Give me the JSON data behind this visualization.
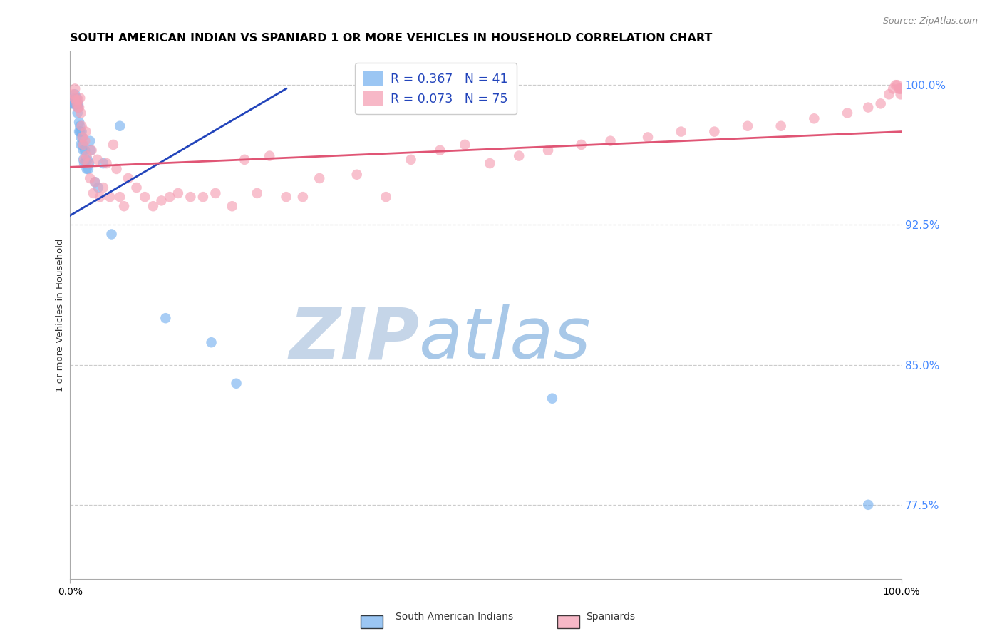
{
  "title": "SOUTH AMERICAN INDIAN VS SPANIARD 1 OR MORE VEHICLES IN HOUSEHOLD CORRELATION CHART",
  "source": "Source: ZipAtlas.com",
  "ylabel": "1 or more Vehicles in Household",
  "xlim": [
    0.0,
    1.0
  ],
  "ylim": [
    0.735,
    1.018
  ],
  "yticks": [
    0.775,
    0.85,
    0.925,
    1.0
  ],
  "ytick_labels": [
    "77.5%",
    "85.0%",
    "92.5%",
    "100.0%"
  ],
  "legend_blue_r": "R = 0.367",
  "legend_blue_n": "N = 41",
  "legend_pink_r": "R = 0.073",
  "legend_pink_n": "N = 75",
  "legend_blue_label": "South American Indians",
  "legend_pink_label": "Spaniards",
  "watermark_zip": "ZIP",
  "watermark_atlas": "atlas",
  "blue_scatter_x": [
    0.003,
    0.004,
    0.005,
    0.006,
    0.006,
    0.007,
    0.008,
    0.008,
    0.009,
    0.01,
    0.01,
    0.011,
    0.011,
    0.012,
    0.012,
    0.013,
    0.013,
    0.014,
    0.015,
    0.015,
    0.016,
    0.016,
    0.017,
    0.018,
    0.019,
    0.02,
    0.021,
    0.022,
    0.023,
    0.024,
    0.025,
    0.03,
    0.034,
    0.04,
    0.05,
    0.06,
    0.115,
    0.17,
    0.2,
    0.58,
    0.96
  ],
  "blue_scatter_y": [
    0.99,
    0.992,
    0.99,
    0.995,
    0.993,
    0.99,
    0.993,
    0.99,
    0.985,
    0.99,
    0.988,
    0.98,
    0.975,
    0.978,
    0.975,
    0.972,
    0.968,
    0.975,
    0.972,
    0.968,
    0.965,
    0.96,
    0.958,
    0.965,
    0.96,
    0.955,
    0.96,
    0.955,
    0.958,
    0.97,
    0.965,
    0.948,
    0.945,
    0.958,
    0.92,
    0.978,
    0.875,
    0.862,
    0.84,
    0.832,
    0.775
  ],
  "pink_scatter_x": [
    0.004,
    0.005,
    0.006,
    0.007,
    0.008,
    0.009,
    0.01,
    0.011,
    0.012,
    0.013,
    0.014,
    0.015,
    0.016,
    0.017,
    0.018,
    0.019,
    0.02,
    0.022,
    0.024,
    0.026,
    0.028,
    0.03,
    0.033,
    0.036,
    0.04,
    0.044,
    0.048,
    0.052,
    0.056,
    0.06,
    0.065,
    0.07,
    0.08,
    0.09,
    0.1,
    0.11,
    0.12,
    0.13,
    0.145,
    0.16,
    0.175,
    0.195,
    0.21,
    0.225,
    0.24,
    0.26,
    0.28,
    0.3,
    0.345,
    0.38,
    0.41,
    0.445,
    0.475,
    0.505,
    0.54,
    0.575,
    0.615,
    0.65,
    0.695,
    0.735,
    0.775,
    0.815,
    0.855,
    0.895,
    0.935,
    0.96,
    0.975,
    0.985,
    0.99,
    0.993,
    0.995,
    0.997,
    0.998,
    0.999,
    1.0
  ],
  "pink_scatter_y": [
    0.995,
    0.993,
    0.998,
    0.992,
    0.99,
    0.988,
    0.992,
    0.988,
    0.993,
    0.985,
    0.978,
    0.972,
    0.968,
    0.96,
    0.97,
    0.975,
    0.962,
    0.958,
    0.95,
    0.965,
    0.942,
    0.948,
    0.96,
    0.94,
    0.945,
    0.958,
    0.94,
    0.968,
    0.955,
    0.94,
    0.935,
    0.95,
    0.945,
    0.94,
    0.935,
    0.938,
    0.94,
    0.942,
    0.94,
    0.94,
    0.942,
    0.935,
    0.96,
    0.942,
    0.962,
    0.94,
    0.94,
    0.95,
    0.952,
    0.94,
    0.96,
    0.965,
    0.968,
    0.958,
    0.962,
    0.965,
    0.968,
    0.97,
    0.972,
    0.975,
    0.975,
    0.978,
    0.978,
    0.982,
    0.985,
    0.988,
    0.99,
    0.995,
    0.998,
    1.0,
    1.0,
    0.998,
    0.998,
    0.995,
    0.998
  ],
  "blue_line_x": [
    0.0,
    0.26
  ],
  "blue_line_y": [
    0.93,
    0.998
  ],
  "pink_line_x": [
    0.0,
    1.0
  ],
  "pink_line_y": [
    0.956,
    0.975
  ],
  "blue_color": "#7ab3f0",
  "pink_color": "#f5a0b5",
  "blue_line_color": "#2244bb",
  "pink_line_color": "#e05575",
  "grid_color": "#cccccc",
  "right_tick_color": "#4488ff",
  "watermark_zip_color": "#c5d5e8",
  "watermark_atlas_color": "#a8c8e8",
  "title_fontsize": 11.5,
  "source_fontsize": 9,
  "ylabel_fontsize": 9.5,
  "tick_fontsize": 10,
  "legend_fontsize": 12.5,
  "scatter_size": 110,
  "scatter_alpha": 0.65
}
